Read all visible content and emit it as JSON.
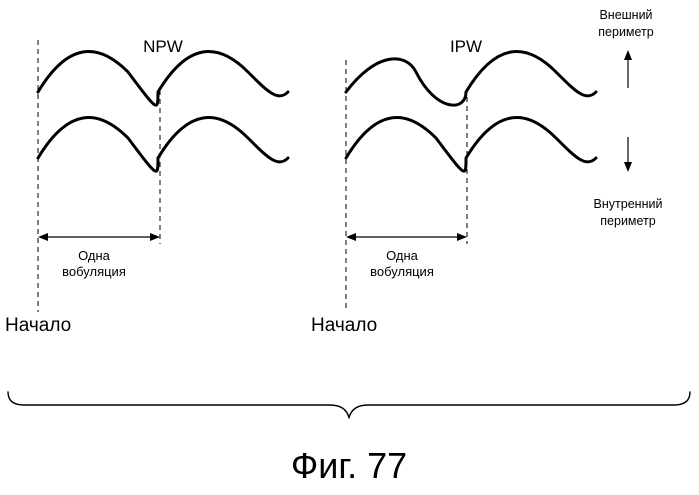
{
  "panels": {
    "npw": {
      "title": "NPW",
      "wobble_label_line1": "Одна",
      "wobble_label_line2": "вобуляция",
      "start_label": "Начало"
    },
    "ipw": {
      "title": "IPW",
      "wobble_label_line1": "Одна",
      "wobble_label_line2": "вобуляция",
      "start_label": "Начало"
    }
  },
  "directions": {
    "outer_line1": "Внешний",
    "outer_line2": "периметр",
    "inner_line1": "Внутренний",
    "inner_line2": "периметр"
  },
  "figure": {
    "caption": "Фиг. 77"
  }
}
